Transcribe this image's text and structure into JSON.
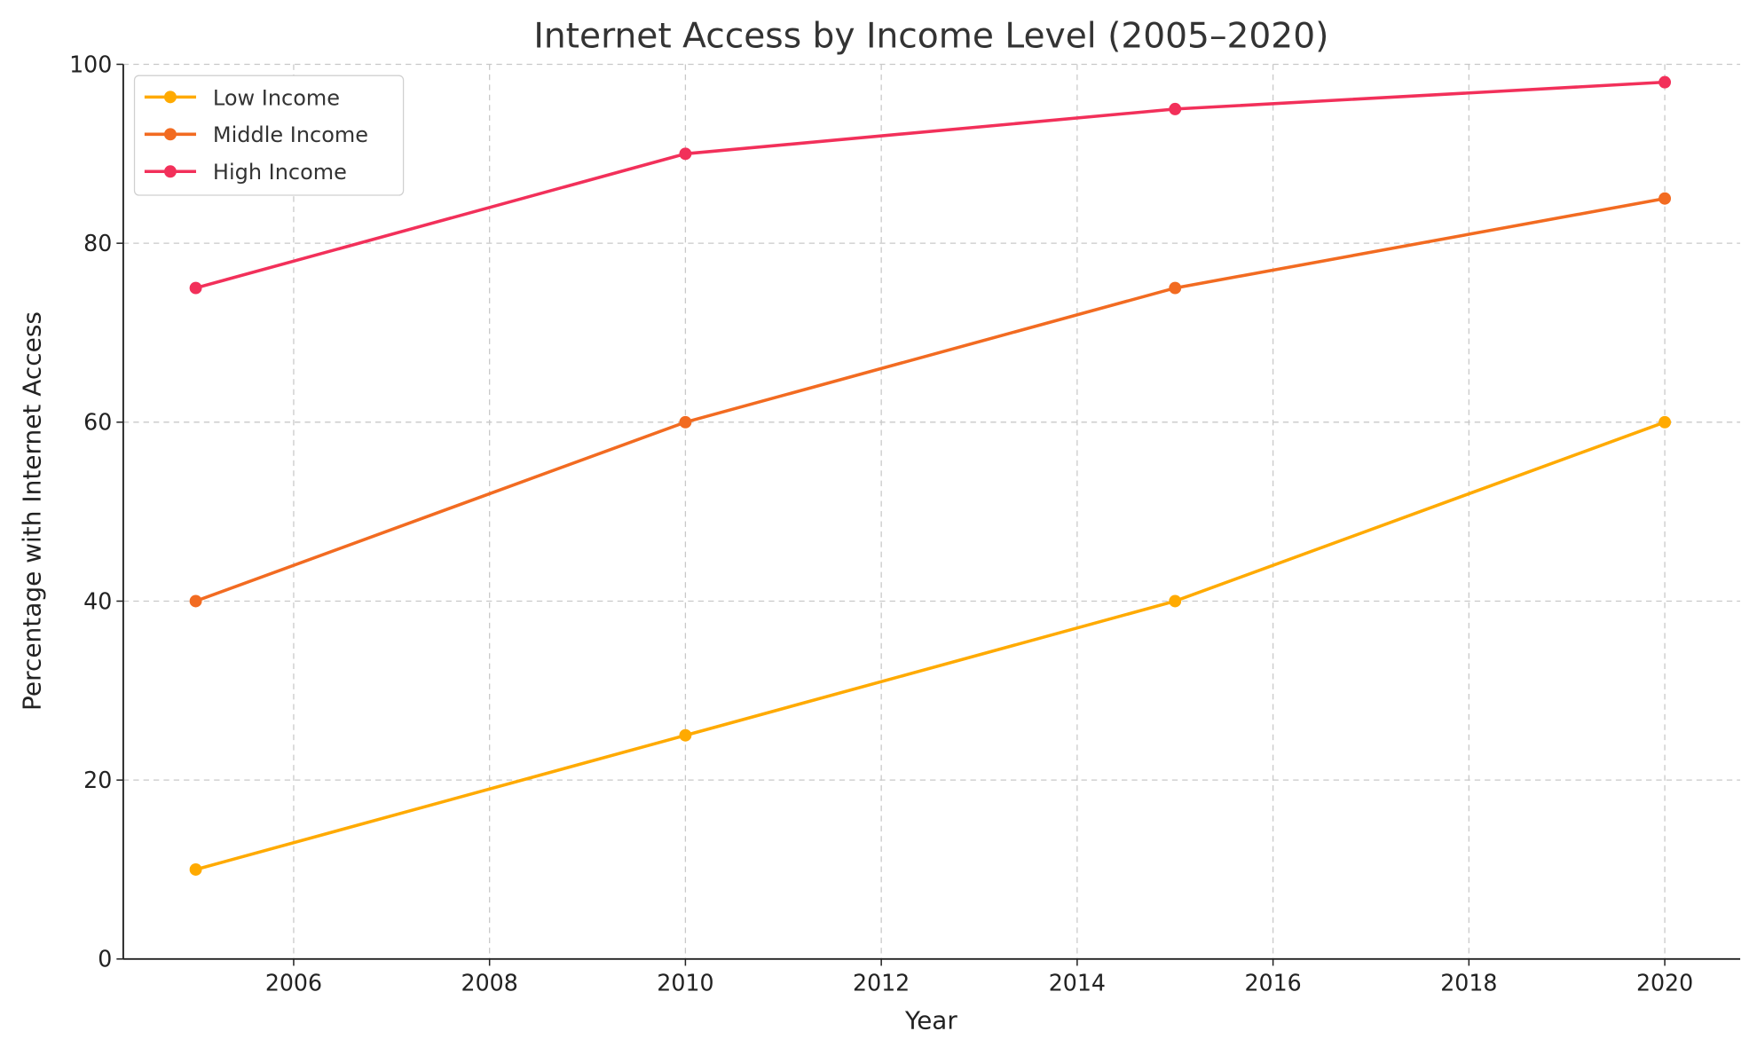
{
  "chart_data": {
    "type": "line",
    "title": "Internet Access by Income Level (2005–2020)",
    "xlabel": "Year",
    "ylabel": "Percentage with Internet Access",
    "x": [
      2005,
      2010,
      2015,
      2020
    ],
    "xlim": [
      2004.26,
      2020.77
    ],
    "ylim": [
      0,
      100
    ],
    "xticks": [
      2006,
      2008,
      2010,
      2012,
      2014,
      2016,
      2018,
      2020
    ],
    "yticks": [
      0,
      20,
      40,
      60,
      80,
      100
    ],
    "grid": true,
    "legend_position": "top-left",
    "series": [
      {
        "name": "Low Income",
        "values": [
          10,
          25,
          40,
          60
        ],
        "color": "#FFAA00"
      },
      {
        "name": "Middle Income",
        "values": [
          40,
          60,
          75,
          85
        ],
        "color": "#F26B21"
      },
      {
        "name": "High Income",
        "values": [
          75,
          90,
          95,
          98
        ],
        "color": "#F2305A"
      }
    ]
  }
}
